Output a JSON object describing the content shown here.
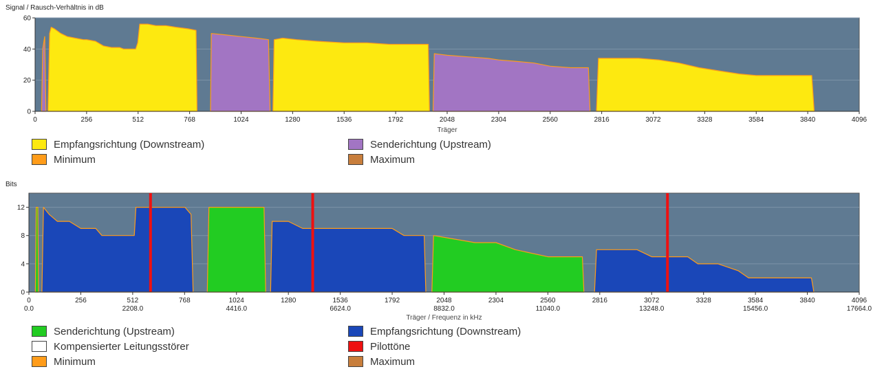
{
  "chart_data": [
    {
      "type": "area",
      "ylabel": "Signal / Rausch-Verhältnis in dB",
      "xlabel": "Träger",
      "xlim": [
        0,
        4096
      ],
      "ylim": [
        0,
        60
      ],
      "xticks": [
        0,
        256,
        512,
        768,
        1024,
        1280,
        1536,
        1792,
        2048,
        2304,
        2560,
        2816,
        3072,
        3328,
        3584,
        3840,
        4096
      ],
      "yticks": [
        0,
        20,
        40,
        60
      ],
      "grid": true,
      "background": "#5f7a92",
      "series": [
        {
          "name": "Empfangsrichtung (Downstream)",
          "color": "#fde910",
          "segments": [
            [
              [
                64,
                0
              ],
              [
                72,
                50
              ],
              [
                80,
                54
              ],
              [
                96,
                53
              ],
              [
                128,
                50
              ],
              [
                160,
                48
              ],
              [
                200,
                47
              ],
              [
                240,
                46
              ],
              [
                256,
                46
              ],
              [
                300,
                45
              ],
              [
                340,
                42
              ],
              [
                380,
                41
              ],
              [
                420,
                41
              ],
              [
                440,
                40
              ],
              [
                500,
                40
              ],
              [
                510,
                44
              ],
              [
                520,
                56
              ],
              [
                560,
                56
              ],
              [
                600,
                55
              ],
              [
                650,
                55
              ],
              [
                700,
                54
              ],
              [
                760,
                53
              ],
              [
                800,
                52
              ],
              [
                805,
                0
              ]
            ],
            [
              [
                1182,
                0
              ],
              [
                1188,
                46
              ],
              [
                1230,
                47
              ],
              [
                1300,
                46
              ],
              [
                1400,
                45
              ],
              [
                1536,
                44
              ],
              [
                1650,
                44
              ],
              [
                1760,
                43
              ],
              [
                1850,
                43
              ],
              [
                1954,
                43
              ],
              [
                1960,
                0
              ]
            ],
            [
              [
                2790,
                0
              ],
              [
                2800,
                34
              ],
              [
                2900,
                34
              ],
              [
                3000,
                34
              ],
              [
                3100,
                33
              ],
              [
                3200,
                31
              ],
              [
                3300,
                28
              ],
              [
                3400,
                26
              ],
              [
                3500,
                24
              ],
              [
                3584,
                23
              ],
              [
                3700,
                23
              ],
              [
                3800,
                23
              ],
              [
                3860,
                23
              ],
              [
                3872,
                0
              ]
            ]
          ]
        },
        {
          "name": "Senderichtung (Upstream)",
          "color": "#a275c3",
          "segments": [
            [
              [
                32,
                0
              ],
              [
                38,
                40
              ],
              [
                48,
                48
              ],
              [
                54,
                0
              ]
            ],
            [
              [
                872,
                0
              ],
              [
                876,
                50
              ],
              [
                950,
                49
              ],
              [
                1024,
                48
              ],
              [
                1100,
                47
              ],
              [
                1160,
                46
              ],
              [
                1168,
                0
              ]
            ],
            [
              [
                1978,
                0
              ],
              [
                1984,
                37
              ],
              [
                2048,
                36
              ],
              [
                2150,
                35
              ],
              [
                2250,
                34
              ],
              [
                2304,
                33
              ],
              [
                2400,
                32
              ],
              [
                2480,
                31
              ],
              [
                2560,
                29
              ],
              [
                2660,
                28
              ],
              [
                2750,
                28
              ],
              [
                2758,
                0
              ]
            ]
          ]
        }
      ],
      "legend": [
        "Empfangsrichtung (Downstream)",
        "Senderichtung (Upstream)",
        "Minimum",
        "Maximum"
      ],
      "legend_colors": [
        "#fde910",
        "#a275c3",
        "#ff9c1a",
        "#c87e3c"
      ]
    },
    {
      "type": "area",
      "ylabel": "Bits",
      "xlabel": "Träger / Frequenz in kHz",
      "xlim": [
        0,
        4096
      ],
      "ylim": [
        0,
        14
      ],
      "xticks": [
        0,
        256,
        512,
        768,
        1024,
        1280,
        1536,
        1792,
        2048,
        2304,
        2560,
        2816,
        3072,
        3328,
        3584,
        3840,
        4096
      ],
      "xticks_freq": [
        {
          "x": 0,
          "label": "0.0"
        },
        {
          "x": 512,
          "label": "2208.0"
        },
        {
          "x": 1024,
          "label": "4416.0"
        },
        {
          "x": 1536,
          "label": "6624.0"
        },
        {
          "x": 2048,
          "label": "8832.0"
        },
        {
          "x": 2560,
          "label": "11040.0"
        },
        {
          "x": 3072,
          "label": "13248.0"
        },
        {
          "x": 3584,
          "label": "15456.0"
        },
        {
          "x": 4096,
          "label": "17664.0"
        }
      ],
      "yticks": [
        0,
        4,
        8,
        12
      ],
      "grid": true,
      "background": "#5f7a92",
      "series": [
        {
          "name": "Senderichtung (Upstream)",
          "color": "#22cc22",
          "segments": [
            [
              [
                32,
                0
              ],
              [
                36,
                12
              ],
              [
                44,
                12
              ],
              [
                48,
                0
              ]
            ],
            [
              [
                880,
                0
              ],
              [
                888,
                12
              ],
              [
                1160,
                12
              ],
              [
                1168,
                0
              ]
            ],
            [
              [
                1988,
                0
              ],
              [
                1996,
                8
              ],
              [
                2200,
                7
              ],
              [
                2304,
                7
              ],
              [
                2400,
                6
              ],
              [
                2560,
                5
              ],
              [
                2730,
                5
              ],
              [
                2738,
                0
              ]
            ]
          ]
        },
        {
          "name": "Empfangsrichtung (Downstream)",
          "color": "#1a47b8",
          "segments": [
            [
              [
                64,
                0
              ],
              [
                72,
                12
              ],
              [
                100,
                11
              ],
              [
                140,
                10
              ],
              [
                200,
                10
              ],
              [
                256,
                9
              ],
              [
                330,
                9
              ],
              [
                360,
                8
              ],
              [
                420,
                8
              ],
              [
                520,
                8
              ],
              [
                528,
                12
              ],
              [
                600,
                12
              ],
              [
                680,
                12
              ],
              [
                770,
                12
              ],
              [
                800,
                11
              ],
              [
                810,
                0
              ]
            ],
            [
              [
                1192,
                0
              ],
              [
                1200,
                10
              ],
              [
                1280,
                10
              ],
              [
                1350,
                9
              ],
              [
                1536,
                9
              ],
              [
                1700,
                9
              ],
              [
                1792,
                9
              ],
              [
                1850,
                8
              ],
              [
                1950,
                8
              ],
              [
                1958,
                0
              ]
            ],
            [
              [
                2790,
                0
              ],
              [
                2800,
                6
              ],
              [
                2900,
                6
              ],
              [
                3000,
                6
              ],
              [
                3072,
                5
              ],
              [
                3250,
                5
              ],
              [
                3300,
                4
              ],
              [
                3400,
                4
              ],
              [
                3500,
                3
              ],
              [
                3550,
                2
              ],
              [
                3700,
                2
              ],
              [
                3860,
                2
              ],
              [
                3872,
                0
              ]
            ]
          ]
        }
      ],
      "pilot_tones": [
        600,
        1400,
        3150
      ],
      "legend": [
        "Senderichtung (Upstream)",
        "Empfangsrichtung (Downstream)",
        "Kompensierter Leitungsstörer",
        "Pilottöne",
        "Minimum",
        "Maximum"
      ],
      "legend_colors": [
        "#22cc22",
        "#1a47b8",
        "#ffffff",
        "#ee1111",
        "#ff9c1a",
        "#c87e3c"
      ]
    }
  ]
}
